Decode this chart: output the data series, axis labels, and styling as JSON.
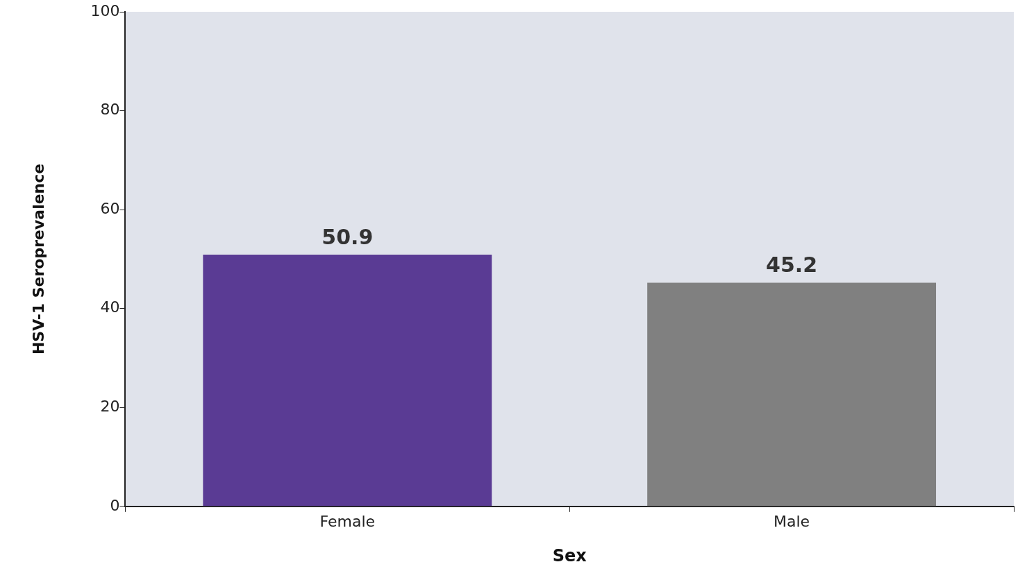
{
  "chart_data": {
    "type": "bar",
    "xlabel": "Sex",
    "ylabel": "HSV-1 Seroprevalence",
    "categories": [
      "Female",
      "Male"
    ],
    "values": [
      50.9,
      45.2
    ],
    "colors": [
      "#5a3b94",
      "#808080"
    ],
    "data_labels": true,
    "ylim": [
      0,
      100
    ],
    "yticks": [
      0,
      20,
      40,
      60,
      80,
      100
    ],
    "grid": false,
    "legend": false
  }
}
